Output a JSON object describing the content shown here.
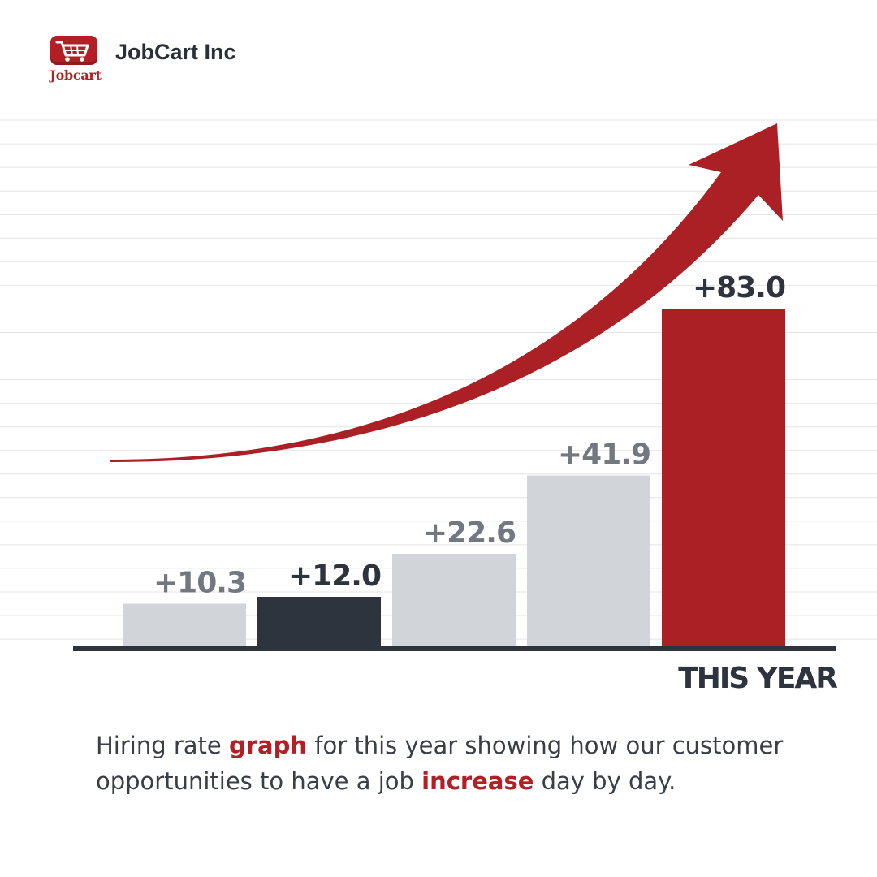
{
  "brand": {
    "logo_text": "Jobcart",
    "name": "JobCart Inc",
    "logo_icon": "shopping-cart-icon"
  },
  "chart_data": {
    "type": "bar",
    "categories": [
      "",
      "",
      "",
      "",
      "THIS YEAR"
    ],
    "values": [
      10.3,
      12.0,
      22.6,
      41.9,
      83.0
    ],
    "data_labels": [
      "+10.3",
      "+12.0",
      "+22.6",
      "+41.9",
      "+83.0"
    ],
    "bar_colors": [
      "#d1d5d9",
      "#2e343e",
      "#d1d5d9",
      "#d1d5d9",
      "#ab2025"
    ],
    "label_colors": [
      "#737880",
      "#2e343e",
      "#737880",
      "#737880",
      "#2e343e"
    ],
    "xlabel": "THIS YEAR",
    "ylim": [
      0,
      130
    ],
    "grid": true,
    "annotation": "upward-trend-arrow",
    "colors": {
      "accent": "#ab2025",
      "dark": "#2e343e",
      "muted": "#d1d5d9",
      "grid": "#e4e4e4"
    }
  },
  "caption": {
    "part1": "Hiring rate ",
    "highlight1": "graph",
    "part2": " for this year showing how our customer opportunities to have a job ",
    "highlight2": "increase",
    "part3": " day by day."
  }
}
